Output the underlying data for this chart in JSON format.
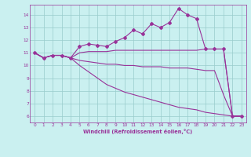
{
  "xlabel": "Windchill (Refroidissement éolien,°C)",
  "bg_color": "#caf0f0",
  "line_color": "#993399",
  "grid_color": "#99cccc",
  "xlim": [
    -0.5,
    23.5
  ],
  "ylim": [
    5.5,
    14.8
  ],
  "xticks": [
    0,
    1,
    2,
    3,
    4,
    5,
    6,
    7,
    8,
    9,
    10,
    11,
    12,
    13,
    14,
    15,
    16,
    17,
    18,
    19,
    20,
    21,
    22,
    23
  ],
  "yticks": [
    6,
    7,
    8,
    9,
    10,
    11,
    12,
    13,
    14
  ],
  "series": [
    {
      "x": [
        0,
        1,
        2,
        3,
        4,
        5,
        6,
        7,
        8,
        9,
        10,
        11,
        12,
        13,
        14,
        15,
        16,
        17,
        18,
        19,
        20,
        21,
        22,
        23
      ],
      "y": [
        11.0,
        10.6,
        10.8,
        10.8,
        10.6,
        11.5,
        11.7,
        11.6,
        11.5,
        11.9,
        12.2,
        12.8,
        12.5,
        13.3,
        13.0,
        13.4,
        14.5,
        14.0,
        13.7,
        11.3,
        11.3,
        11.3,
        6.0,
        6.0
      ],
      "has_markers": true
    },
    {
      "x": [
        0,
        1,
        2,
        3,
        4,
        5,
        6,
        7,
        8,
        9,
        10,
        11,
        12,
        13,
        14,
        15,
        16,
        17,
        18,
        19,
        20,
        21,
        22,
        23
      ],
      "y": [
        11.0,
        10.6,
        10.8,
        10.8,
        10.6,
        11.0,
        11.1,
        11.1,
        11.1,
        11.2,
        11.2,
        11.2,
        11.2,
        11.2,
        11.2,
        11.2,
        11.2,
        11.2,
        11.2,
        11.3,
        11.3,
        11.3,
        6.0,
        6.0
      ],
      "has_markers": false
    },
    {
      "x": [
        0,
        1,
        2,
        3,
        4,
        5,
        6,
        7,
        8,
        9,
        10,
        11,
        12,
        13,
        14,
        15,
        16,
        17,
        18,
        19,
        20,
        21,
        22,
        23
      ],
      "y": [
        11.0,
        10.6,
        10.8,
        10.8,
        10.6,
        10.4,
        10.3,
        10.2,
        10.1,
        10.1,
        10.0,
        10.0,
        9.9,
        9.9,
        9.9,
        9.8,
        9.8,
        9.8,
        9.7,
        9.6,
        9.6,
        7.7,
        6.0,
        6.0
      ],
      "has_markers": false
    },
    {
      "x": [
        0,
        1,
        2,
        3,
        4,
        5,
        6,
        7,
        8,
        9,
        10,
        11,
        12,
        13,
        14,
        15,
        16,
        17,
        18,
        19,
        20,
        21,
        22,
        23
      ],
      "y": [
        11.0,
        10.6,
        10.8,
        10.8,
        10.6,
        10.0,
        9.5,
        9.0,
        8.5,
        8.2,
        7.9,
        7.7,
        7.5,
        7.3,
        7.1,
        6.9,
        6.7,
        6.6,
        6.5,
        6.3,
        6.2,
        6.1,
        6.0,
        6.0
      ],
      "has_markers": false
    }
  ]
}
